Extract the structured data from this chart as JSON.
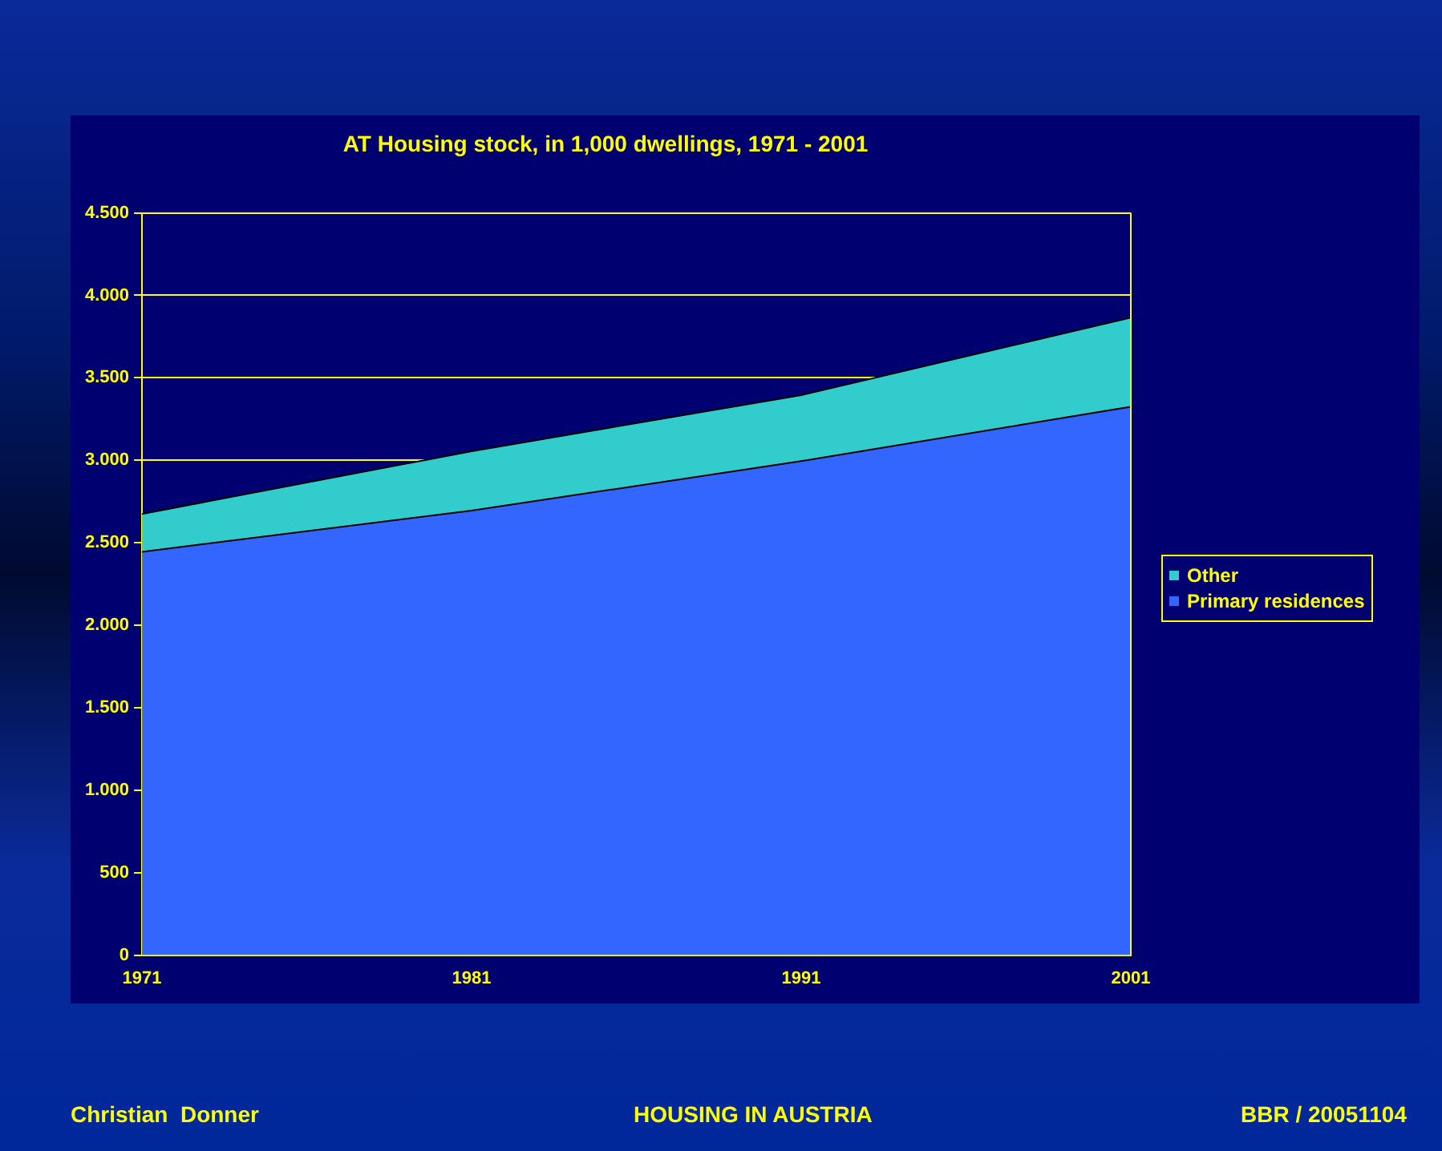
{
  "chart_data": {
    "type": "area",
    "title": "AT Housing stock, in 1,000 dwellings, 1971 - 2001",
    "categories": [
      "1971",
      "1981",
      "1991",
      "2001"
    ],
    "stacked": true,
    "series": [
      {
        "name": "Primary residences",
        "color": "#3366ff",
        "values": [
          2445,
          2695,
          2995,
          3325
        ]
      },
      {
        "name": "Other",
        "color": "#33cccc",
        "values": [
          230,
          360,
          400,
          540
        ]
      }
    ],
    "ylim": [
      0,
      4500
    ],
    "yticks": [
      0,
      500,
      {
        "value": 1000,
        "label": "1.000"
      },
      {
        "value": 1500,
        "label": "1.500"
      },
      {
        "value": 2000,
        "label": "2.000"
      },
      {
        "value": 2500,
        "label": "2.500"
      },
      {
        "value": 3000,
        "label": "3.000"
      },
      {
        "value": 3500,
        "label": "3.500"
      },
      {
        "value": 4000,
        "label": "4.000"
      },
      {
        "value": 4500,
        "label": "4.500"
      }
    ],
    "grid": "y",
    "legend": "right",
    "annotations": [
      "Christian  Donner",
      "HOUSING IN AUSTRIA",
      "BBR / 20051104"
    ]
  }
}
